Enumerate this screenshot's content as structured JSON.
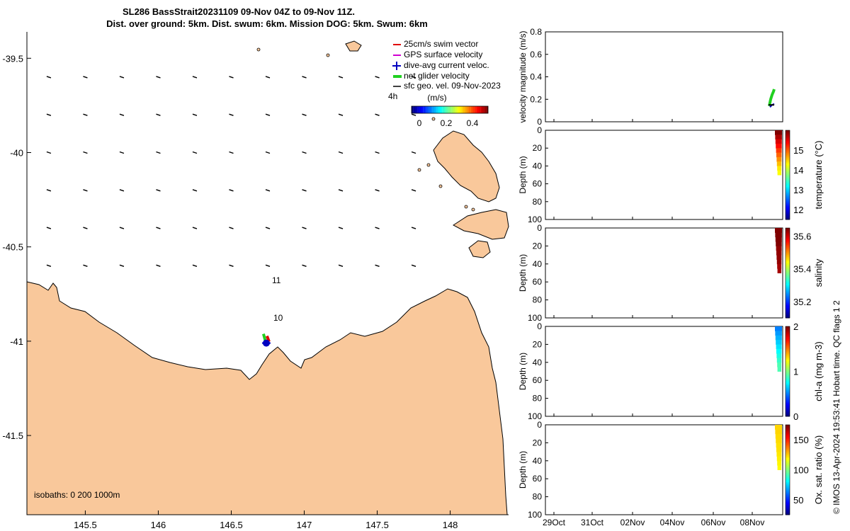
{
  "title": {
    "line1": "SL286 BassStrait20231109 09-Nov 04Z to 09-Nov 11Z.",
    "line2": "Dist. over ground: 5km. Dist. swum: 6km. Mission DOG: 5km. Swum: 6km"
  },
  "colors": {
    "land": "#f9c89b",
    "land_edge": "#000000",
    "sea": "#ffffff"
  },
  "chart_data": [
    {
      "type": "scatter",
      "kind": "map",
      "xlim": [
        145.1,
        148.4
      ],
      "ylim": [
        -41.92,
        -39.36
      ],
      "x_ticks": [
        145.5,
        146,
        146.5,
        147,
        147.5,
        148
      ],
      "x_tick_labels": [
        "145.5",
        "146",
        "146.5",
        "147",
        "147.5",
        "148"
      ],
      "y_ticks": [
        -39.5,
        -40,
        -40.5,
        -41,
        -41.5
      ],
      "y_tick_labels": [
        "-39.5",
        "-40",
        "-40.5",
        "-41",
        "-41.5"
      ],
      "legend": {
        "placement": "top-right",
        "entries": [
          {
            "label": "25cm/s swim vector",
            "color": "#e00000"
          },
          {
            "label": "GPS surface velocity",
            "color": "#d000d0"
          },
          {
            "label": "dive-avg current veloc.",
            "color": "#0000c0"
          },
          {
            "label": "net glider velocity",
            "color": "#20d020"
          },
          {
            "label": "sfc geo. vel. 09-Nov-2023",
            "color": "#000000"
          }
        ]
      },
      "colorbar": {
        "label": "(m/s)",
        "ticks": [
          "0",
          "0.2",
          "0.4"
        ],
        "time_label": "4h"
      },
      "annotations": {
        "label_11": "11",
        "label_10": "10",
        "isobaths": "isobaths: 0   200  1000m"
      },
      "glider_position": {
        "lon": 146.74,
        "lat": -41.01
      },
      "vector_grid": {
        "lons": [
          145.25,
          145.5,
          145.75,
          146.0,
          146.25,
          146.5,
          146.75,
          147.0,
          147.25,
          147.5,
          147.75
        ],
        "lats": [
          -39.6,
          -39.8,
          -40.0,
          -40.2,
          -40.4,
          -40.6,
          -40.8
        ]
      }
    },
    {
      "type": "line",
      "name": "velocity",
      "ylabel": "velocity magnitude (m/s)",
      "ylim": [
        0,
        0.8
      ],
      "y_tick_labels": [
        "0",
        "0.2",
        "0.4",
        "0.6",
        "0.8"
      ],
      "y_ticks": [
        0,
        0.2,
        0.4,
        0.6,
        0.8
      ],
      "series": [
        {
          "name": "net glider velocity",
          "color": "#20d020",
          "x": [
            -0.35,
            -0.25,
            -0.15,
            -0.05,
            0.0
          ],
          "values": [
            0.14,
            0.2,
            0.24,
            0.27,
            0.29
          ]
        },
        {
          "name": "dive-avg current veloc.",
          "color": "#0000c0",
          "x": [
            -0.3,
            -0.15,
            0.0
          ],
          "values": [
            0.13,
            0.15,
            0.16
          ]
        },
        {
          "name": "sfc geo. vel. 09-Nov-2023",
          "color": "#000000",
          "x": [
            -0.4,
            0.0
          ],
          "values": [
            0.15,
            0.15
          ]
        }
      ]
    },
    {
      "type": "heatmap",
      "name": "temperature",
      "ylabel": "Depth (m)",
      "clabel": "temperature (°C)",
      "ylim": [
        100,
        0
      ],
      "y_tick_labels": [
        "0",
        "20",
        "40",
        "60",
        "80",
        "100"
      ],
      "clim": [
        11.5,
        16
      ],
      "c_ticks": [
        12,
        13,
        14,
        15
      ],
      "c_tick_labels": [
        "12",
        "13",
        "14",
        "15"
      ],
      "colormap": "jet",
      "profile": {
        "depth": [
          0,
          5,
          10,
          15,
          20,
          25,
          30,
          35,
          40,
          45,
          50
        ],
        "values": [
          16,
          15.8,
          15.6,
          15.4,
          15.2,
          15.0,
          14.8,
          14.6,
          14.4,
          14.3,
          14.2
        ]
      }
    },
    {
      "type": "heatmap",
      "name": "salinity",
      "ylabel": "Depth (m)",
      "clabel": "salinity",
      "ylim": [
        100,
        0
      ],
      "y_tick_labels": [
        "0",
        "20",
        "40",
        "60",
        "80",
        "100"
      ],
      "clim": [
        35.1,
        35.65
      ],
      "c_ticks": [
        35.2,
        35.4,
        35.6
      ],
      "c_tick_labels": [
        "35.2",
        "35.4",
        "35.6"
      ],
      "colormap": "jet",
      "profile": {
        "depth": [
          0,
          5,
          10,
          15,
          20,
          25,
          30,
          35,
          40,
          45,
          50
        ],
        "values": [
          35.65,
          35.65,
          35.65,
          35.65,
          35.64,
          35.64,
          35.64,
          35.64,
          35.63,
          35.63,
          35.63
        ]
      }
    },
    {
      "type": "heatmap",
      "name": "chl-a",
      "ylabel": "Depth (m)",
      "clabel": "chl-a (mg m-3)",
      "ylim": [
        100,
        0
      ],
      "y_tick_labels": [
        "0",
        "20",
        "40",
        "60",
        "80",
        "100"
      ],
      "clim": [
        0,
        2
      ],
      "c_ticks": [
        0,
        1,
        2
      ],
      "c_tick_labels": [
        "0",
        "1",
        "2"
      ],
      "colormap": "jet",
      "profile": {
        "depth": [
          0,
          5,
          10,
          15,
          20,
          25,
          30,
          35,
          40,
          45,
          50
        ],
        "values": [
          0.5,
          0.55,
          0.6,
          0.65,
          0.7,
          0.75,
          0.8,
          0.85,
          0.9,
          0.9,
          0.85
        ]
      }
    },
    {
      "type": "heatmap",
      "name": "oxygen",
      "ylabel": "Depth (m)",
      "clabel": "Ox. sat. ratio (%)",
      "ylim": [
        100,
        0
      ],
      "y_tick_labels": [
        "0",
        "20",
        "40",
        "60",
        "80",
        "100"
      ],
      "x_tick_labels": [
        "29Oct",
        "31Oct",
        "02Nov",
        "04Nov",
        "06Nov",
        "08Nov"
      ],
      "clim": [
        25,
        175
      ],
      "c_ticks": [
        50,
        100,
        150
      ],
      "c_tick_labels": [
        "50",
        "100",
        "150"
      ],
      "colormap": "jet",
      "profile": {
        "depth": [
          0,
          5,
          10,
          15,
          20,
          25,
          30,
          35,
          40,
          45,
          50
        ],
        "values": [
          125,
          125,
          124,
          124,
          123,
          123,
          122,
          121,
          120,
          119,
          118
        ]
      }
    }
  ],
  "footer": "© IMOS 13-Apr-2024 19:53:41 Hobart time. QC flags 1  2"
}
